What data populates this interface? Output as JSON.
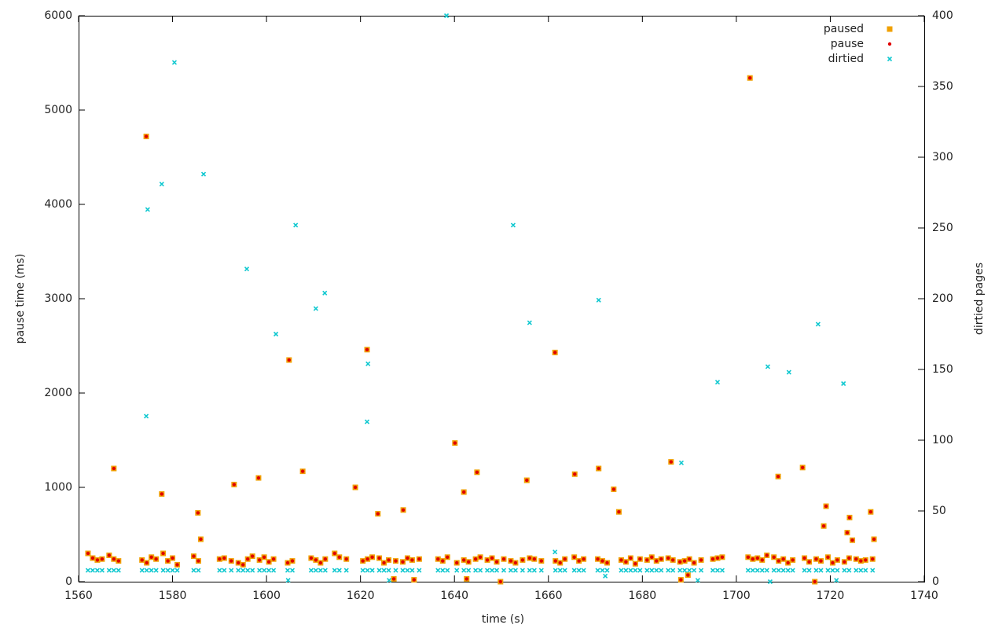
{
  "chart_data": {
    "type": "scatter",
    "xlabel": "time (s)",
    "ylabel": "pause time (ms)",
    "y2label": "dirtied pages",
    "xlim": [
      1560,
      1740
    ],
    "xticks": [
      1560,
      1580,
      1600,
      1620,
      1640,
      1660,
      1680,
      1700,
      1720,
      1740
    ],
    "ylim": [
      0,
      6000
    ],
    "yticks": [
      0,
      1000,
      2000,
      3000,
      4000,
      5000,
      6000
    ],
    "y2lim": [
      0,
      400
    ],
    "y2ticks": [
      0,
      50,
      100,
      150,
      200,
      250,
      300,
      350,
      400
    ],
    "grid": false,
    "legend": "upper right",
    "series": [
      {
        "name": "paused",
        "color": "#f0a000",
        "marker": "square",
        "x": [
          1574.4,
          1567.5,
          1577.7,
          1585.4,
          1586,
          1593.1,
          1598.3,
          1604.8,
          1607.7,
          1618.9,
          1621.4,
          1623.7,
          1629.1,
          1640.1,
          1642,
          1644.8,
          1655.4,
          1661.4,
          1665.6,
          1670.7,
          1673.9,
          1675,
          1686.1,
          1702.9,
          1708.9,
          1714.1,
          1719.1,
          1728.6,
          1724.1,
          1723.6,
          1718.6,
          1724.7,
          1729.3,
          1649.8,
          1716.7,
          1627.1,
          1631.4,
          1642.6,
          1688.2,
          1689.7,
          1562,
          1563,
          1564,
          1565,
          1566.5,
          1567.5,
          1568.5,
          1573.5,
          1574.5,
          1575.5,
          1576.5,
          1578,
          1579,
          1580,
          1581,
          1584.5,
          1585.5,
          1590,
          1591,
          1592.5,
          1594,
          1595,
          1596,
          1597,
          1598.5,
          1599.5,
          1600.5,
          1601.5,
          1604.5,
          1605.5,
          1609.5,
          1610.5,
          1611.5,
          1612.5,
          1614.5,
          1615.5,
          1617,
          1620.5,
          1621.5,
          1622.5,
          1624,
          1625,
          1626,
          1627.5,
          1629,
          1630,
          1631,
          1632.5,
          1636.5,
          1637.5,
          1638.5,
          1640.5,
          1642,
          1643,
          1644.5,
          1645.5,
          1647,
          1648,
          1649,
          1650.5,
          1652,
          1653,
          1654.5,
          1656,
          1657,
          1658.5,
          1661.5,
          1662.5,
          1663.5,
          1665.5,
          1666.5,
          1667.5,
          1670.5,
          1671.5,
          1672.5,
          1675.5,
          1676.5,
          1677.5,
          1678.5,
          1679.5,
          1681,
          1682,
          1683,
          1684,
          1685.5,
          1686.5,
          1688,
          1689,
          1690,
          1691,
          1692.5,
          1695,
          1696,
          1697,
          1702.5,
          1703.5,
          1704.5,
          1705.5,
          1706.5,
          1708,
          1709,
          1710,
          1711,
          1712,
          1714.5,
          1715.5,
          1717,
          1718,
          1719.5,
          1720.5,
          1721.5,
          1723,
          1724,
          1725.5,
          1726.5,
          1727.5,
          1729
        ],
        "values": [
          4720,
          1200,
          930,
          730,
          450,
          1030,
          1100,
          2350,
          1170,
          1000,
          2460,
          720,
          760,
          1470,
          950,
          1160,
          1075,
          2430,
          1140,
          1200,
          980,
          740,
          1270,
          5340,
          1115,
          1210,
          800,
          740,
          680,
          520,
          590,
          440,
          450,
          0,
          0,
          30,
          20,
          30,
          20,
          70,
          300,
          250,
          230,
          240,
          280,
          240,
          220,
          230,
          200,
          260,
          240,
          300,
          220,
          250,
          180,
          270,
          220,
          240,
          250,
          220,
          200,
          180,
          240,
          270,
          230,
          260,
          210,
          240,
          200,
          220,
          250,
          230,
          200,
          240,
          300,
          260,
          240,
          220,
          240,
          260,
          250,
          200,
          230,
          220,
          210,
          250,
          230,
          240,
          240,
          220,
          260,
          200,
          230,
          210,
          240,
          260,
          230,
          250,
          210,
          240,
          220,
          200,
          230,
          250,
          240,
          220,
          220,
          200,
          240,
          260,
          220,
          240,
          240,
          220,
          200,
          230,
          210,
          250,
          190,
          240,
          230,
          260,
          220,
          240,
          250,
          230,
          210,
          220,
          240,
          200,
          230,
          240,
          250,
          260,
          260,
          240,
          250,
          230,
          280,
          260,
          220,
          240,
          200,
          230,
          250,
          210,
          240,
          220,
          260,
          200,
          230,
          210,
          250,
          240,
          220,
          230,
          240
        ]
      },
      {
        "name": "pause",
        "color": "#e00000",
        "marker": "circle",
        "x": [
          1574.4,
          1567.5,
          1577.7,
          1585.4,
          1586,
          1593.1,
          1598.3,
          1604.8,
          1607.7,
          1618.9,
          1621.4,
          1623.7,
          1629.1,
          1640.1,
          1642,
          1644.8,
          1655.4,
          1661.4,
          1665.6,
          1670.7,
          1673.9,
          1675,
          1686.1,
          1702.9,
          1708.9,
          1714.1,
          1719.1,
          1728.6,
          1724.1,
          1723.6,
          1718.6,
          1724.7,
          1729.3,
          1649.8,
          1716.7,
          1627.1,
          1631.4,
          1642.6,
          1688.2,
          1689.7,
          1562,
          1563,
          1564,
          1565,
          1566.5,
          1567.5,
          1568.5,
          1573.5,
          1574.5,
          1575.5,
          1576.5,
          1578,
          1579,
          1580,
          1581,
          1584.5,
          1585.5,
          1590,
          1591,
          1592.5,
          1594,
          1595,
          1596,
          1597,
          1598.5,
          1599.5,
          1600.5,
          1601.5,
          1604.5,
          1605.5,
          1609.5,
          1610.5,
          1611.5,
          1612.5,
          1614.5,
          1615.5,
          1617,
          1620.5,
          1621.5,
          1622.5,
          1624,
          1625,
          1626,
          1627.5,
          1629,
          1630,
          1631,
          1632.5,
          1636.5,
          1637.5,
          1638.5,
          1640.5,
          1642,
          1643,
          1644.5,
          1645.5,
          1647,
          1648,
          1649,
          1650.5,
          1652,
          1653,
          1654.5,
          1656,
          1657,
          1658.5,
          1661.5,
          1662.5,
          1663.5,
          1665.5,
          1666.5,
          1667.5,
          1670.5,
          1671.5,
          1672.5,
          1675.5,
          1676.5,
          1677.5,
          1678.5,
          1679.5,
          1681,
          1682,
          1683,
          1684,
          1685.5,
          1686.5,
          1688,
          1689,
          1690,
          1691,
          1692.5,
          1695,
          1696,
          1697,
          1702.5,
          1703.5,
          1704.5,
          1705.5,
          1706.5,
          1708,
          1709,
          1710,
          1711,
          1712,
          1714.5,
          1715.5,
          1717,
          1718,
          1719.5,
          1720.5,
          1721.5,
          1723,
          1724,
          1725.5,
          1726.5,
          1727.5,
          1729
        ],
        "values": [
          4720,
          1200,
          930,
          730,
          450,
          1030,
          1100,
          2350,
          1170,
          1000,
          2460,
          720,
          760,
          1470,
          950,
          1160,
          1075,
          2430,
          1140,
          1200,
          980,
          740,
          1270,
          5340,
          1115,
          1210,
          800,
          740,
          680,
          520,
          590,
          440,
          450,
          0,
          0,
          30,
          20,
          30,
          20,
          70,
          300,
          250,
          230,
          240,
          280,
          240,
          220,
          230,
          200,
          260,
          240,
          300,
          220,
          250,
          180,
          270,
          220,
          240,
          250,
          220,
          200,
          180,
          240,
          270,
          230,
          260,
          210,
          240,
          200,
          220,
          250,
          230,
          200,
          240,
          300,
          260,
          240,
          220,
          240,
          260,
          250,
          200,
          230,
          220,
          210,
          250,
          230,
          240,
          240,
          220,
          260,
          200,
          230,
          210,
          240,
          260,
          230,
          250,
          210,
          240,
          220,
          200,
          230,
          250,
          240,
          220,
          220,
          200,
          240,
          260,
          220,
          240,
          240,
          220,
          200,
          230,
          210,
          250,
          190,
          240,
          230,
          260,
          220,
          240,
          250,
          230,
          210,
          220,
          240,
          200,
          230,
          240,
          250,
          260,
          260,
          240,
          250,
          230,
          280,
          260,
          220,
          240,
          200,
          230,
          250,
          210,
          240,
          220,
          260,
          200,
          230,
          210,
          250,
          240,
          220,
          230,
          240
        ]
      },
      {
        "name": "dirtied",
        "color": "#10c8d0",
        "marker": "cross",
        "axis": "y2",
        "x": [
          1580.4,
          1574.7,
          1574.4,
          1577.7,
          1586.6,
          1595.8,
          1602,
          1606.2,
          1612.4,
          1610.5,
          1621.6,
          1621.4,
          1638.3,
          1652.5,
          1656,
          1670.7,
          1688.3,
          1696,
          1706.7,
          1711.2,
          1717.4,
          1722.8,
          1661.4,
          1604.6,
          1672.1,
          1707.2,
          1691.8,
          1721.3,
          1626.1,
          1562,
          1563,
          1564,
          1565,
          1566.5,
          1567.5,
          1568.5,
          1573.5,
          1574.5,
          1575.5,
          1576.5,
          1578,
          1579,
          1580,
          1581,
          1584.5,
          1585.5,
          1590,
          1591,
          1592.5,
          1594,
          1595,
          1596,
          1597,
          1598.5,
          1599.5,
          1600.5,
          1601.5,
          1604.5,
          1605.5,
          1609.5,
          1610.5,
          1611.5,
          1612.5,
          1614.5,
          1615.5,
          1617,
          1620.5,
          1621.5,
          1622.5,
          1624,
          1625,
          1626,
          1627.5,
          1629,
          1630,
          1631,
          1632.5,
          1636.5,
          1637.5,
          1638.5,
          1640.5,
          1642,
          1643,
          1644.5,
          1645.5,
          1647,
          1648,
          1649,
          1650.5,
          1652,
          1653,
          1654.5,
          1656,
          1657,
          1658.5,
          1661.5,
          1662.5,
          1663.5,
          1665.5,
          1666.5,
          1667.5,
          1670.5,
          1671.5,
          1672.5,
          1675.5,
          1676.5,
          1677.5,
          1678.5,
          1679.5,
          1681,
          1682,
          1683,
          1684,
          1685.5,
          1686.5,
          1688,
          1689,
          1690,
          1691,
          1692.5,
          1695,
          1696,
          1697,
          1702.5,
          1703.5,
          1704.5,
          1705.5,
          1706.5,
          1708,
          1709,
          1710,
          1711,
          1712,
          1714.5,
          1715.5,
          1717,
          1718,
          1719.5,
          1720.5,
          1721.5,
          1723,
          1724,
          1725.5,
          1726.5,
          1727.5,
          1729
        ],
        "values": [
          367,
          263,
          117,
          281,
          288,
          221,
          175,
          252,
          204,
          193,
          154,
          113,
          400,
          252,
          183,
          199,
          84,
          141,
          152,
          148,
          182,
          140,
          21,
          1,
          4,
          0,
          1,
          1,
          1,
          8,
          8,
          8,
          8,
          8,
          8,
          8,
          8,
          8,
          8,
          8,
          8,
          8,
          8,
          8,
          8,
          8,
          8,
          8,
          8,
          8,
          8,
          8,
          8,
          8,
          8,
          8,
          8,
          8,
          8,
          8,
          8,
          8,
          8,
          8,
          8,
          8,
          8,
          8,
          8,
          8,
          8,
          8,
          8,
          8,
          8,
          8,
          8,
          8,
          8,
          8,
          8,
          8,
          8,
          8,
          8,
          8,
          8,
          8,
          8,
          8,
          8,
          8,
          8,
          8,
          8,
          8,
          8,
          8,
          8,
          8,
          8,
          8,
          8,
          8,
          8,
          8,
          8,
          8,
          8,
          8,
          8,
          8,
          8,
          8,
          8,
          8,
          8,
          8,
          8,
          8,
          8,
          8,
          8,
          8,
          8,
          8,
          8,
          8,
          8,
          8,
          8,
          8,
          8,
          8,
          8,
          8,
          8,
          8,
          8,
          8,
          8,
          8,
          8,
          8,
          8,
          8
        ]
      }
    ]
  }
}
